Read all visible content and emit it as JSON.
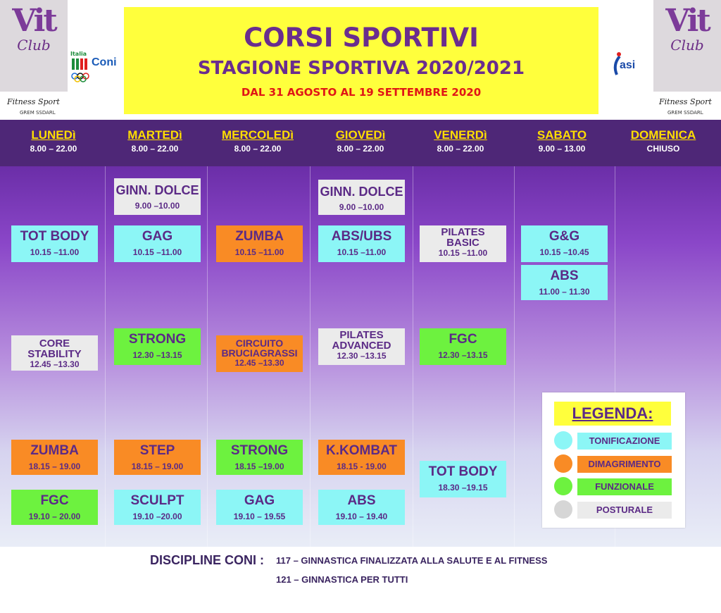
{
  "header": {
    "logo_text": "Vit",
    "logo_club": "Club",
    "fitness": "Fitness Sport",
    "grem": "GREM SSDARL",
    "coni": "Coni",
    "italia": "Italia",
    "asi": "asi",
    "title": "CORSI SPORTIVI",
    "subtitle": "STAGIONE SPORTIVA 2020/2021",
    "dates": "DAL 31 AGOSTO AL 19 SETTEMBRE 2020"
  },
  "days": [
    {
      "name": "LUNEDì",
      "hours": "8.00 – 22.00"
    },
    {
      "name": "MARTEDì",
      "hours": "8.00 – 22.00"
    },
    {
      "name": "MERCOLEDì",
      "hours": "8.00 – 22.00"
    },
    {
      "name": "GIOVEDì",
      "hours": "8.00 – 22.00"
    },
    {
      "name": "VENERDì",
      "hours": "8.00 – 22.00"
    },
    {
      "name": "SABATO",
      "hours": "9.00 – 13.00"
    },
    {
      "name": "DOMENICA",
      "hours": "CHIUSO"
    }
  ],
  "classes": [
    {
      "name": "GINN. DOLCE",
      "time": "9.00 –10.00",
      "category": "posturale"
    },
    {
      "name": "GINN. DOLCE",
      "time": "9.00 –10.00",
      "category": "posturale"
    },
    {
      "name": "TOT BODY",
      "time": "10.15 –11.00",
      "category": "tonificazione"
    },
    {
      "name": "GAG",
      "time": "10.15 –11.00",
      "category": "tonificazione"
    },
    {
      "name": "ZUMBA",
      "time": "10.15 –11.00",
      "category": "dimagrimento"
    },
    {
      "name": "ABS/UBS",
      "time": "10.15 –11.00",
      "category": "tonificazione"
    },
    {
      "name": "PILATES BASIC",
      "time": "10.15 –11.00",
      "category": "posturale"
    },
    {
      "name": "G&G",
      "time": "10.15 –10.45",
      "category": "tonificazione"
    },
    {
      "name": "ABS",
      "time": "11.00 – 11.30",
      "category": "tonificazione"
    },
    {
      "name": "CORE STABILITY",
      "time": "12.45 –13.30",
      "category": "posturale"
    },
    {
      "name": "STRONG",
      "time": "12.30 –13.15",
      "category": "funzionale"
    },
    {
      "name": "CIRCUITO BRUCIAGRASSI",
      "time": "12.45 –13.30",
      "category": "dimagrimento"
    },
    {
      "name": "PILATES ADVANCED",
      "time": "12.30 –13.15",
      "category": "posturale"
    },
    {
      "name": "FGC",
      "time": "12.30 –13.15",
      "category": "funzionale"
    },
    {
      "name": "ZUMBA",
      "time": "18.15 – 19.00",
      "category": "dimagrimento"
    },
    {
      "name": "STEP",
      "time": "18.15 – 19.00",
      "category": "dimagrimento"
    },
    {
      "name": "STRONG",
      "time": "18.15 –19.00",
      "category": "funzionale"
    },
    {
      "name": "K.KOMBAT",
      "time": "18.15 - 19.00",
      "category": "dimagrimento"
    },
    {
      "name": "TOT BODY",
      "time": "18.30 –19.15",
      "category": "tonificazione"
    },
    {
      "name": "FGC",
      "time": "19.10 – 20.00",
      "category": "funzionale"
    },
    {
      "name": "SCULPT",
      "time": "19.10 –20.00",
      "category": "tonificazione"
    },
    {
      "name": "GAG",
      "time": "19.10 – 19.55",
      "category": "tonificazione"
    },
    {
      "name": "ABS",
      "time": "19.10 – 19.40",
      "category": "tonificazione"
    }
  ],
  "legend": {
    "title": "LEGENDA:",
    "items": [
      {
        "label": "TONIFICAZIONE",
        "color": "#8cf6f6",
        "dot": "#8cf6f6"
      },
      {
        "label": "DIMAGRIMENTO",
        "color": "#f98b25",
        "dot": "#f98b25"
      },
      {
        "label": "FUNZIONALE",
        "color": "#6df23f",
        "dot": "#6df23f"
      },
      {
        "label": "POSTURALE",
        "color": "#ebebeb",
        "dot": "#d6d6d6"
      }
    ]
  },
  "footer": {
    "label": "DISCIPLINE CONI :",
    "line1": "117 – GINNASTICA FINALIZZATA ALLA SALUTE E AL FITNESS",
    "line2": "121 – GINNASTICA PER TUTTI"
  }
}
